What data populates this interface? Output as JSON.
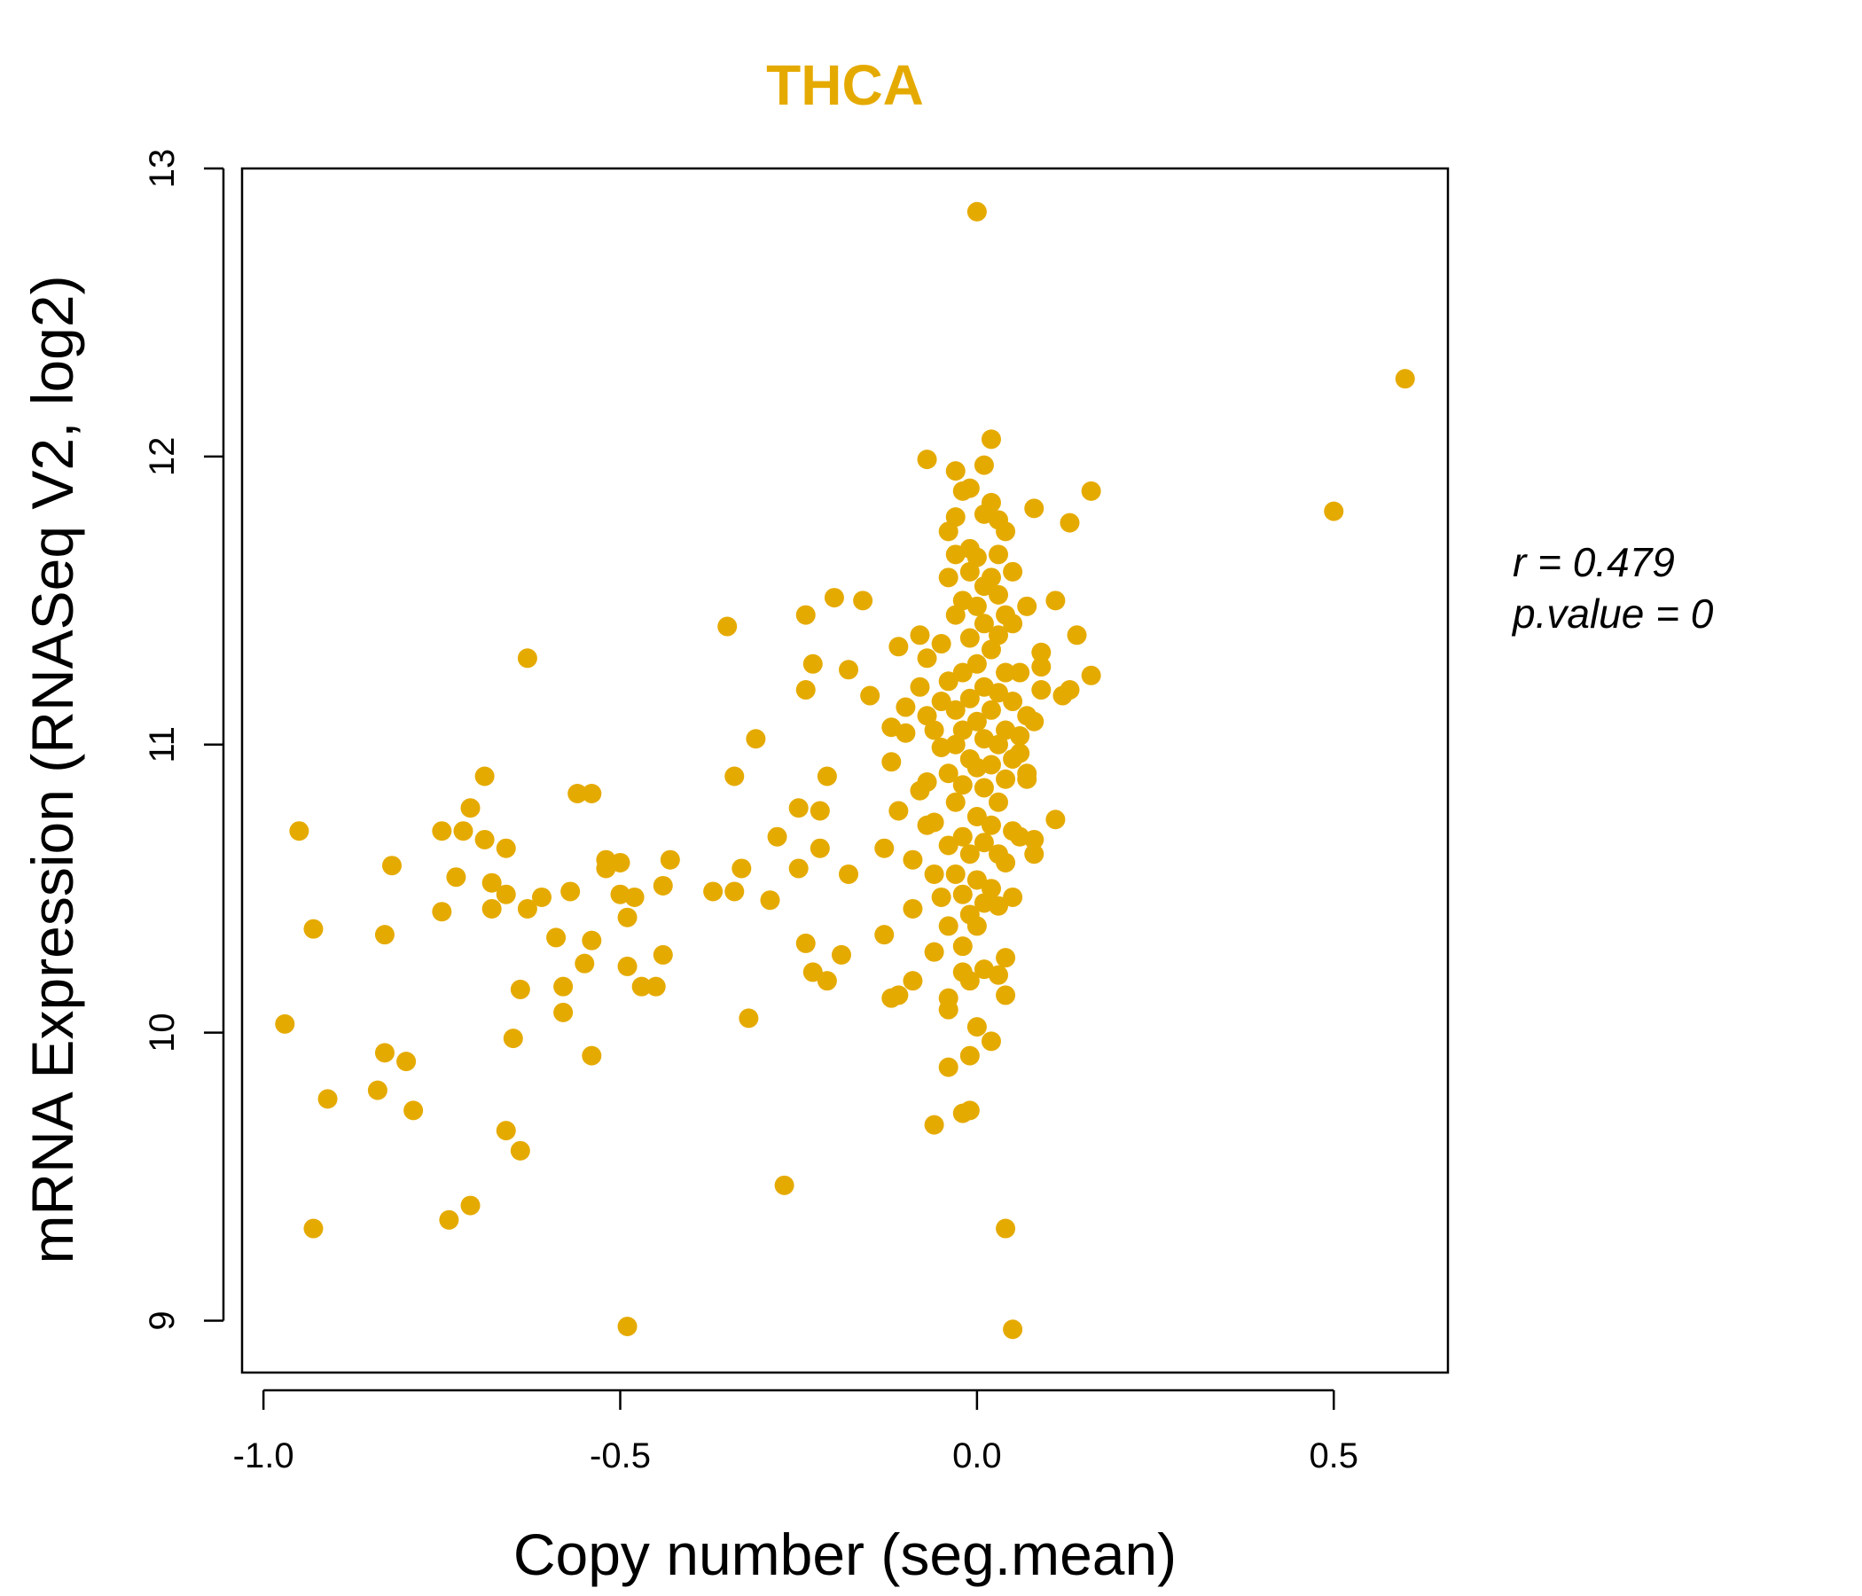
{
  "chart_data": {
    "type": "scatter",
    "title": "THCA",
    "xlabel": "Copy number (seg.mean)",
    "ylabel": "mRNA Expression (RNASeq V2, log2)",
    "xlim": [
      -1.03,
      0.66
    ],
    "ylim": [
      8.82,
      13.0
    ],
    "xticks": [
      -1.0,
      -0.5,
      0.0,
      0.5
    ],
    "xtick_labels": [
      "-1.0",
      "-0.5",
      "0.0",
      "0.5"
    ],
    "yticks": [
      9,
      10,
      11,
      12,
      13
    ],
    "ytick_labels": [
      "9",
      "10",
      "11",
      "12",
      "13"
    ],
    "grid": false,
    "legend": "none",
    "point_color": "#E5AA00",
    "title_color": "#E5AA00",
    "stats": {
      "r_label": "r = 0.479",
      "p_label": "p.value = 0"
    },
    "points": [
      [
        -0.97,
        10.03
      ],
      [
        -0.95,
        10.7
      ],
      [
        -0.93,
        10.36
      ],
      [
        -0.91,
        9.77
      ],
      [
        -0.93,
        9.32
      ],
      [
        -0.83,
        10.34
      ],
      [
        -0.82,
        10.58
      ],
      [
        -0.83,
        9.93
      ],
      [
        -0.84,
        9.8
      ],
      [
        -0.8,
        9.9
      ],
      [
        -0.79,
        9.73
      ],
      [
        -0.75,
        10.7
      ],
      [
        -0.75,
        10.42
      ],
      [
        -0.73,
        10.54
      ],
      [
        -0.72,
        10.7
      ],
      [
        -0.71,
        10.78
      ],
      [
        -0.69,
        10.67
      ],
      [
        -0.69,
        10.89
      ],
      [
        -0.68,
        10.52
      ],
      [
        -0.68,
        10.43
      ],
      [
        -0.66,
        10.64
      ],
      [
        -0.66,
        10.48
      ],
      [
        -0.65,
        9.98
      ],
      [
        -0.64,
        10.15
      ],
      [
        -0.63,
        10.43
      ],
      [
        -0.63,
        11.3
      ],
      [
        -0.66,
        9.66
      ],
      [
        -0.64,
        9.59
      ],
      [
        -0.71,
        9.4
      ],
      [
        -0.74,
        9.35
      ],
      [
        -0.61,
        10.47
      ],
      [
        -0.59,
        10.33
      ],
      [
        -0.58,
        10.16
      ],
      [
        -0.58,
        10.07
      ],
      [
        -0.57,
        10.49
      ],
      [
        -0.56,
        10.83
      ],
      [
        -0.55,
        10.24
      ],
      [
        -0.54,
        10.32
      ],
      [
        -0.54,
        10.83
      ],
      [
        -0.54,
        9.92
      ],
      [
        -0.52,
        10.6
      ],
      [
        -0.52,
        10.57
      ],
      [
        -0.5,
        10.59
      ],
      [
        -0.5,
        10.48
      ],
      [
        -0.49,
        10.4
      ],
      [
        -0.49,
        10.23
      ],
      [
        -0.48,
        10.47
      ],
      [
        -0.47,
        10.16
      ],
      [
        -0.45,
        10.16
      ],
      [
        -0.44,
        10.51
      ],
      [
        -0.44,
        10.27
      ],
      [
        -0.43,
        10.6
      ],
      [
        -0.49,
        8.98
      ],
      [
        -0.37,
        10.49
      ],
      [
        -0.35,
        11.41
      ],
      [
        -0.34,
        10.89
      ],
      [
        -0.34,
        10.49
      ],
      [
        -0.33,
        10.57
      ],
      [
        -0.32,
        10.05
      ],
      [
        -0.31,
        11.02
      ],
      [
        -0.29,
        10.46
      ],
      [
        -0.28,
        10.68
      ],
      [
        -0.27,
        9.47
      ],
      [
        -0.25,
        10.78
      ],
      [
        -0.25,
        10.57
      ],
      [
        -0.24,
        10.31
      ],
      [
        -0.24,
        11.19
      ],
      [
        -0.24,
        11.45
      ],
      [
        -0.23,
        11.28
      ],
      [
        -0.23,
        10.21
      ],
      [
        -0.22,
        10.64
      ],
      [
        -0.22,
        10.77
      ],
      [
        -0.21,
        10.89
      ],
      [
        -0.21,
        10.18
      ],
      [
        -0.2,
        11.51
      ],
      [
        -0.19,
        10.27
      ],
      [
        -0.18,
        10.55
      ],
      [
        -0.18,
        11.26
      ],
      [
        -0.16,
        11.5
      ],
      [
        -0.15,
        11.17
      ],
      [
        -0.13,
        10.34
      ],
      [
        -0.13,
        10.64
      ],
      [
        -0.12,
        10.12
      ],
      [
        -0.12,
        10.94
      ],
      [
        -0.12,
        11.06
      ],
      [
        -0.11,
        10.13
      ],
      [
        -0.11,
        10.77
      ],
      [
        -0.11,
        11.34
      ],
      [
        -0.1,
        11.13
      ],
      [
        -0.1,
        11.04
      ],
      [
        -0.09,
        10.18
      ],
      [
        -0.09,
        10.43
      ],
      [
        -0.09,
        10.6
      ],
      [
        -0.08,
        10.84
      ],
      [
        -0.08,
        11.2
      ],
      [
        -0.08,
        11.38
      ],
      [
        -0.07,
        10.72
      ],
      [
        -0.07,
        10.87
      ],
      [
        -0.07,
        11.1
      ],
      [
        -0.07,
        11.3
      ],
      [
        -0.07,
        11.99
      ],
      [
        -0.06,
        10.28
      ],
      [
        -0.06,
        10.55
      ],
      [
        -0.06,
        10.73
      ],
      [
        -0.06,
        11.05
      ],
      [
        -0.06,
        9.68
      ],
      [
        -0.05,
        10.47
      ],
      [
        -0.05,
        10.99
      ],
      [
        -0.05,
        11.15
      ],
      [
        -0.05,
        11.35
      ],
      [
        -0.04,
        10.12
      ],
      [
        -0.04,
        10.08
      ],
      [
        -0.04,
        9.88
      ],
      [
        -0.04,
        10.37
      ],
      [
        -0.04,
        10.65
      ],
      [
        -0.04,
        10.9
      ],
      [
        -0.04,
        11.22
      ],
      [
        -0.04,
        11.58
      ],
      [
        -0.04,
        11.74
      ],
      [
        -0.03,
        10.55
      ],
      [
        -0.03,
        10.8
      ],
      [
        -0.03,
        11.0
      ],
      [
        -0.03,
        11.12
      ],
      [
        -0.03,
        11.45
      ],
      [
        -0.03,
        11.66
      ],
      [
        -0.03,
        11.79
      ],
      [
        -0.03,
        11.95
      ],
      [
        -0.02,
        10.21
      ],
      [
        -0.02,
        10.3
      ],
      [
        -0.02,
        10.48
      ],
      [
        -0.02,
        10.68
      ],
      [
        -0.02,
        10.86
      ],
      [
        -0.02,
        11.05
      ],
      [
        -0.02,
        11.25
      ],
      [
        -0.02,
        11.5
      ],
      [
        -0.02,
        11.88
      ],
      [
        -0.02,
        9.72
      ],
      [
        -0.01,
        9.92
      ],
      [
        -0.01,
        10.18
      ],
      [
        -0.01,
        10.41
      ],
      [
        -0.01,
        10.62
      ],
      [
        -0.01,
        10.95
      ],
      [
        -0.01,
        11.16
      ],
      [
        -0.01,
        11.37
      ],
      [
        -0.01,
        11.6
      ],
      [
        -0.01,
        11.68
      ],
      [
        -0.01,
        11.89
      ],
      [
        -0.01,
        9.73
      ],
      [
        0.0,
        10.02
      ],
      [
        0.0,
        10.37
      ],
      [
        0.0,
        10.53
      ],
      [
        0.0,
        10.75
      ],
      [
        0.0,
        10.92
      ],
      [
        0.0,
        11.08
      ],
      [
        0.0,
        11.28
      ],
      [
        0.0,
        11.48
      ],
      [
        0.0,
        11.65
      ],
      [
        0.0,
        12.85
      ],
      [
        0.01,
        10.22
      ],
      [
        0.01,
        10.45
      ],
      [
        0.01,
        10.66
      ],
      [
        0.01,
        10.85
      ],
      [
        0.01,
        11.02
      ],
      [
        0.01,
        11.2
      ],
      [
        0.01,
        11.42
      ],
      [
        0.01,
        11.55
      ],
      [
        0.01,
        11.8
      ],
      [
        0.01,
        11.97
      ],
      [
        0.02,
        9.97
      ],
      [
        0.02,
        10.5
      ],
      [
        0.02,
        10.72
      ],
      [
        0.02,
        10.93
      ],
      [
        0.02,
        11.12
      ],
      [
        0.02,
        11.33
      ],
      [
        0.02,
        11.58
      ],
      [
        0.02,
        11.84
      ],
      [
        0.02,
        12.06
      ],
      [
        0.03,
        10.2
      ],
      [
        0.03,
        10.44
      ],
      [
        0.03,
        10.62
      ],
      [
        0.03,
        10.8
      ],
      [
        0.03,
        11.0
      ],
      [
        0.03,
        11.18
      ],
      [
        0.03,
        11.38
      ],
      [
        0.03,
        11.52
      ],
      [
        0.03,
        11.66
      ],
      [
        0.03,
        11.78
      ],
      [
        0.04,
        10.13
      ],
      [
        0.04,
        10.26
      ],
      [
        0.04,
        10.59
      ],
      [
        0.04,
        10.88
      ],
      [
        0.04,
        11.05
      ],
      [
        0.04,
        11.25
      ],
      [
        0.04,
        11.45
      ],
      [
        0.04,
        11.74
      ],
      [
        0.04,
        9.32
      ],
      [
        0.05,
        10.47
      ],
      [
        0.05,
        10.7
      ],
      [
        0.05,
        10.95
      ],
      [
        0.05,
        11.15
      ],
      [
        0.05,
        11.42
      ],
      [
        0.05,
        11.6
      ],
      [
        0.05,
        8.97
      ],
      [
        0.06,
        10.68
      ],
      [
        0.06,
        10.97
      ],
      [
        0.06,
        11.03
      ],
      [
        0.06,
        11.25
      ],
      [
        0.07,
        10.88
      ],
      [
        0.07,
        11.1
      ],
      [
        0.07,
        11.48
      ],
      [
        0.07,
        10.9
      ],
      [
        0.08,
        10.62
      ],
      [
        0.08,
        10.67
      ],
      [
        0.08,
        11.08
      ],
      [
        0.08,
        11.82
      ],
      [
        0.09,
        11.19
      ],
      [
        0.09,
        11.27
      ],
      [
        0.09,
        11.32
      ],
      [
        0.11,
        11.5
      ],
      [
        0.11,
        10.74
      ],
      [
        0.12,
        11.17
      ],
      [
        0.13,
        11.19
      ],
      [
        0.13,
        11.77
      ],
      [
        0.14,
        11.38
      ],
      [
        0.16,
        11.88
      ],
      [
        0.16,
        11.24
      ],
      [
        0.5,
        11.81
      ],
      [
        0.6,
        12.27
      ]
    ]
  }
}
